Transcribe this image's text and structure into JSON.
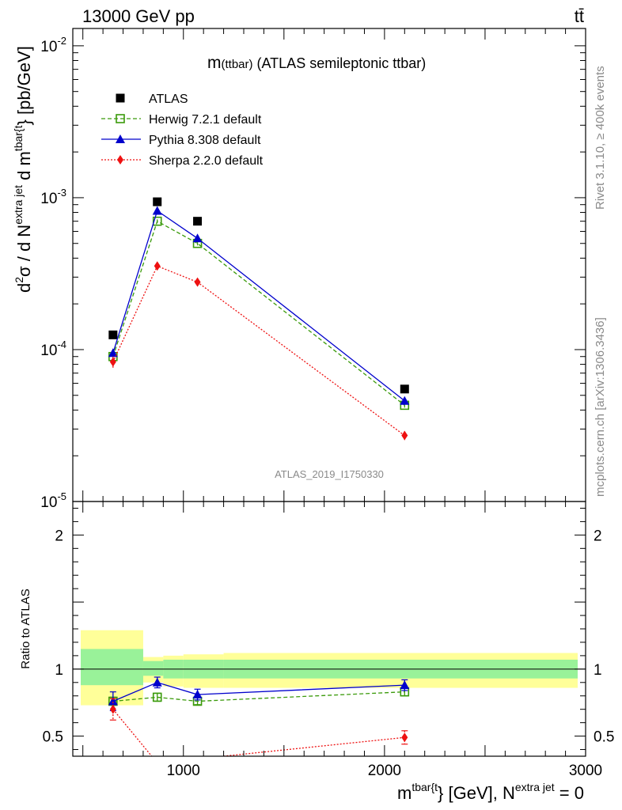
{
  "header": {
    "energy_label": "13000 GeV pp",
    "process_label": "tt̄"
  },
  "side_labels": {
    "rivet": "Rivet 3.1.10, ≥ 400k events",
    "mcplots": "mcplots.cern.ch [arXiv:1306.3436]"
  },
  "watermark": "ATLAS_2019_I1750330",
  "main_title": {
    "m": "m",
    "paren": "(ttbar)",
    "rest": " (ATLAS semileptonic ttbar)"
  },
  "ylabel_main": {
    "d2": "d",
    "sup2": "2",
    "sigma": "σ / d N",
    "sup_extra": "extra jet",
    "dm": " d m",
    "sup_tbar": "tbar{t",
    "unit": "} [pb/GeV]"
  },
  "ylabel_ratio": "Ratio to ATLAS",
  "xlabel": {
    "m": "m",
    "sup_tbar": "tbar{t",
    "mid": "} [GeV], N",
    "sup_extra": "extra jet",
    "end": " = 0"
  },
  "colors": {
    "atlas": "#000000",
    "herwig": "#3a9a0a",
    "pythia": "#0000cc",
    "sherpa": "#ee1111",
    "band_inner": "#99f299",
    "band_outer": "#ffff99"
  },
  "chart_data": [
    {
      "type": "scatter",
      "panel": "main",
      "yscale": "log",
      "xlim": [
        450,
        3000
      ],
      "ylim": [
        1e-05,
        0.013
      ],
      "y_tick_labels": [
        {
          "base": "10",
          "exp": "-2",
          "value": 0.01
        },
        {
          "base": "10",
          "exp": "-3",
          "value": 0.001
        },
        {
          "base": "10",
          "exp": "-4",
          "value": 0.0001
        },
        {
          "base": "10",
          "exp": "-5",
          "value": 1e-05
        }
      ],
      "x": [
        650,
        870,
        1070,
        2100
      ],
      "series": [
        {
          "name": "ATLAS",
          "marker": "square",
          "values": [
            0.000125,
            0.00094,
            0.0007,
            5.5e-05
          ]
        },
        {
          "name": "Herwig 7.2.1 default",
          "marker": "open-square",
          "line": "dashed",
          "values": [
            9e-05,
            0.0007,
            0.0005,
            4.3e-05
          ],
          "errors": [
            5e-06,
            2e-05,
            1.5e-05,
            1.5e-06
          ]
        },
        {
          "name": "Pythia 8.308 default",
          "marker": "triangle",
          "line": "solid",
          "values": [
            9.5e-05,
            0.00082,
            0.00054,
            4.6e-05
          ],
          "errors": [
            6e-06,
            3e-05,
            2e-05,
            1.5e-06
          ]
        },
        {
          "name": "Sherpa 2.2.0 default",
          "marker": "diamond",
          "line": "dotted",
          "values": [
            8.3e-05,
            0.000355,
            0.000278,
            2.72e-05
          ],
          "errors": [
            7e-06,
            2e-05,
            1e-05,
            1.8e-06
          ]
        }
      ],
      "legend": "top-left"
    },
    {
      "type": "line",
      "panel": "ratio",
      "ylabel": "Ratio to ATLAS",
      "xlim": [
        450,
        3000
      ],
      "ylim": [
        0.35,
        2.25
      ],
      "y_ticks": [
        0.5,
        1,
        2
      ],
      "y_tick_labels": [
        "0.5",
        "1",
        "2"
      ],
      "x_ticks": [
        1000,
        2000,
        3000
      ],
      "x_tick_labels": [
        "1000",
        "2000",
        "3000"
      ],
      "x": [
        650,
        870,
        1070,
        2100
      ],
      "series": [
        {
          "name": "Herwig 7.2.1 default",
          "values": [
            0.76,
            0.79,
            0.76,
            0.83
          ],
          "errors": [
            0.03,
            0.03,
            0.025,
            0.03
          ]
        },
        {
          "name": "Pythia 8.308 default",
          "values": [
            0.76,
            0.9,
            0.81,
            0.88
          ],
          "errors": [
            0.07,
            0.04,
            0.04,
            0.04
          ]
        },
        {
          "name": "Sherpa 2.2.0 default",
          "values": [
            0.7,
            0.3,
            0.33,
            0.49
          ],
          "errors": [
            0.08,
            0.03,
            0.02,
            0.05
          ]
        }
      ],
      "uncertainty_band": {
        "edges": [
          450,
          800,
          900,
          1000,
          1200,
          3000
        ],
        "inner": [
          [
            0.88,
            1.15
          ],
          [
            0.95,
            1.06
          ],
          [
            0.93,
            1.07
          ],
          [
            0.93,
            1.07
          ],
          [
            0.93,
            1.07
          ]
        ],
        "outer": [
          [
            0.73,
            1.29
          ],
          [
            0.9,
            1.09
          ],
          [
            0.87,
            1.1
          ],
          [
            0.86,
            1.11
          ],
          [
            0.86,
            1.12
          ]
        ]
      }
    }
  ]
}
